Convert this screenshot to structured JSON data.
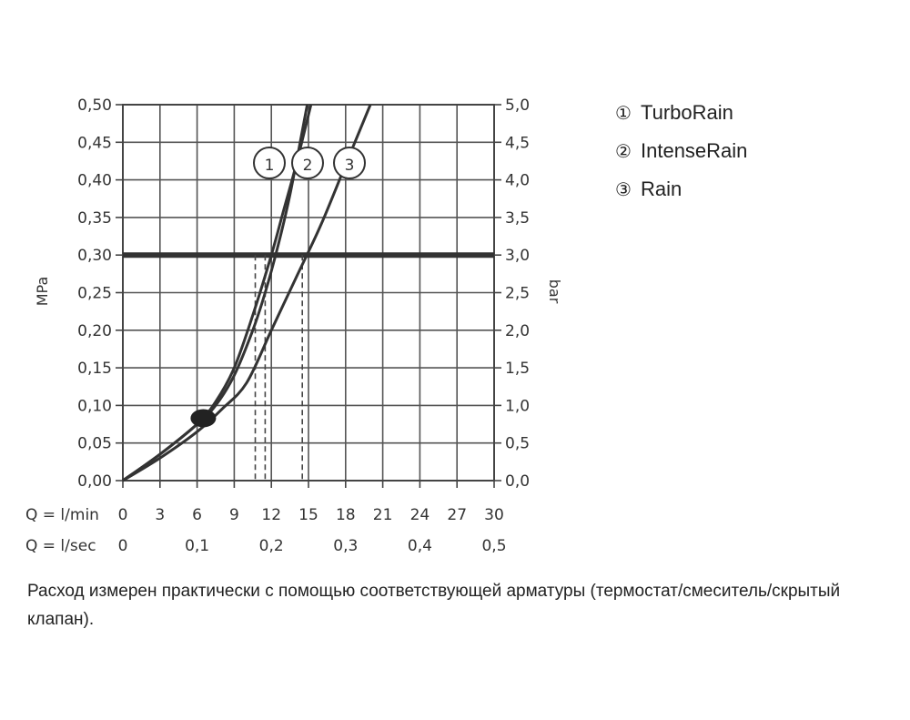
{
  "chart_data": {
    "type": "line",
    "left_axis": {
      "label": "MPa",
      "ticks": [
        "0,00",
        "0,05",
        "0,10",
        "0,15",
        "0,20",
        "0,25",
        "0,30",
        "0,35",
        "0,40",
        "0,45",
        "0,50"
      ],
      "range": [
        0,
        0.5
      ]
    },
    "right_axis": {
      "label": "bar",
      "ticks": [
        "0,0",
        "0,5",
        "1,0",
        "1,5",
        "2,0",
        "2,5",
        "3,0",
        "3,5",
        "4,0",
        "4,5",
        "5,0"
      ],
      "range": [
        0,
        5
      ]
    },
    "x_axis": {
      "range": [
        0,
        30
      ],
      "lmin_label": "Q = l/min",
      "lmin_ticks": [
        "0",
        "3",
        "6",
        "9",
        "12",
        "15",
        "18",
        "21",
        "24",
        "27",
        "30"
      ],
      "lsec_label": "Q = l/sec",
      "lsec_ticks": [
        {
          "value": 0,
          "label": "0"
        },
        {
          "value": 6,
          "label": "0,1"
        },
        {
          "value": 12,
          "label": "0,2"
        },
        {
          "value": 18,
          "label": "0,3"
        },
        {
          "value": 24,
          "label": "0,4"
        },
        {
          "value": 30,
          "label": "0,5"
        }
      ]
    },
    "grid": true,
    "reference_pressure_mpa": 0.3,
    "operating_flows_lmin": [
      10.7,
      11.5,
      14.5
    ],
    "marker": {
      "x": 6.5,
      "y": 0.083
    },
    "series": [
      {
        "id": "1",
        "name": "TurboRain",
        "x": [
          0,
          3,
          6,
          7.5,
          9,
          10.5,
          11.5,
          12.5,
          13.5,
          14.9
        ],
        "y": [
          0,
          0.035,
          0.075,
          0.1,
          0.14,
          0.2,
          0.25,
          0.31,
          0.38,
          0.5
        ]
      },
      {
        "id": "2",
        "name": "IntenseRain",
        "x": [
          0,
          3,
          6,
          7.5,
          9,
          10.5,
          12,
          13,
          14,
          15.2
        ],
        "y": [
          0,
          0.035,
          0.075,
          0.105,
          0.15,
          0.22,
          0.3,
          0.36,
          0.42,
          0.5
        ]
      },
      {
        "id": "3",
        "name": "Rain",
        "x": [
          0,
          3,
          6,
          8,
          10,
          12,
          14,
          16,
          18,
          20
        ],
        "y": [
          0,
          0.03,
          0.065,
          0.095,
          0.13,
          0.2,
          0.27,
          0.34,
          0.42,
          0.5
        ]
      }
    ]
  },
  "legend": [
    {
      "num": "①",
      "name": "TurboRain"
    },
    {
      "num": "②",
      "name": "IntenseRain"
    },
    {
      "num": "③",
      "name": "Rain"
    }
  ],
  "callouts": [
    "1",
    "2",
    "3"
  ],
  "note": "Расход измерен практически с помощью соответствующей арматуры (термостат/смеситель/скрытый клапан)."
}
